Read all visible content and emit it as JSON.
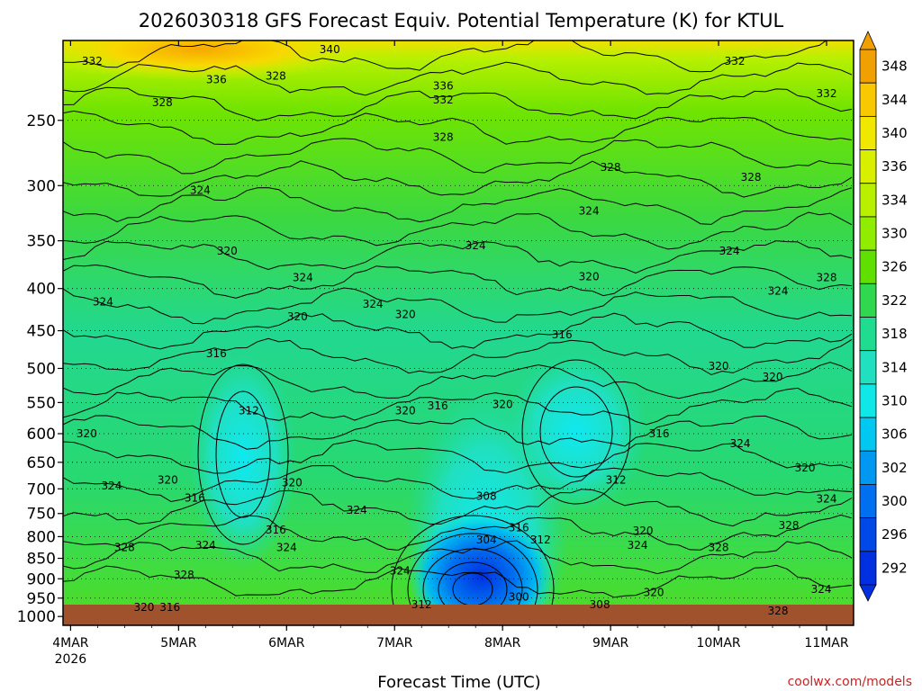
{
  "title": "2026030318 GFS Forecast Equiv. Potential Temperature (K) for KTUL",
  "xlabel": "Forecast Time (UTC)",
  "credit": "coolwx.com/models",
  "chart_data": {
    "type": "heatmap",
    "title": "2026030318 GFS Forecast Equiv. Potential Temperature (K) for KTUL",
    "xlabel": "Forecast Time (UTC)",
    "ylabel": "",
    "x_ticks": [
      {
        "label": "4MAR",
        "sub": "2026",
        "day": 0
      },
      {
        "label": "5MAR",
        "sub": "",
        "day": 1
      },
      {
        "label": "6MAR",
        "sub": "",
        "day": 2
      },
      {
        "label": "7MAR",
        "sub": "",
        "day": 3
      },
      {
        "label": "8MAR",
        "sub": "",
        "day": 4
      },
      {
        "label": "9MAR",
        "sub": "",
        "day": 5
      },
      {
        "label": "10MAR",
        "sub": "",
        "day": 6
      },
      {
        "label": "11MAR",
        "sub": "",
        "day": 7
      }
    ],
    "xlim_days": [
      -0.07,
      7.25
    ],
    "y_ticks": [
      250,
      300,
      350,
      400,
      450,
      500,
      550,
      600,
      650,
      700,
      750,
      800,
      850,
      900,
      950,
      1000
    ],
    "ylim_hpa": [
      200,
      1025
    ],
    "y_scale": "log",
    "colorbar": {
      "values": [
        348,
        344,
        340,
        336,
        334,
        330,
        326,
        322,
        318,
        314,
        310,
        306,
        302,
        300,
        296,
        292
      ],
      "colors": [
        "#f0a000",
        "#f8c800",
        "#f0e800",
        "#d8f000",
        "#b8f000",
        "#90ec00",
        "#60e000",
        "#30d850",
        "#20dc90",
        "#20e0c0",
        "#10e8e8",
        "#00c8f0",
        "#0098f0",
        "#0070f0",
        "#0048e8",
        "#0030e0"
      ]
    },
    "contour_labels": [
      {
        "text": "332",
        "day": 0.2,
        "hpa": 212
      },
      {
        "text": "340",
        "day": 2.4,
        "hpa": 205
      },
      {
        "text": "336",
        "day": 1.35,
        "hpa": 223
      },
      {
        "text": "328",
        "day": 1.9,
        "hpa": 221
      },
      {
        "text": "328",
        "day": 0.85,
        "hpa": 238
      },
      {
        "text": "336",
        "day": 3.45,
        "hpa": 227
      },
      {
        "text": "332",
        "day": 3.45,
        "hpa": 236
      },
      {
        "text": "328",
        "day": 3.45,
        "hpa": 262
      },
      {
        "text": "332",
        "day": 6.15,
        "hpa": 212
      },
      {
        "text": "332",
        "day": 7.0,
        "hpa": 232
      },
      {
        "text": "328",
        "day": 5.0,
        "hpa": 285
      },
      {
        "text": "328",
        "day": 6.3,
        "hpa": 293
      },
      {
        "text": "324",
        "day": 1.2,
        "hpa": 304
      },
      {
        "text": "324",
        "day": 4.8,
        "hpa": 322
      },
      {
        "text": "324",
        "day": 3.75,
        "hpa": 355
      },
      {
        "text": "324",
        "day": 6.1,
        "hpa": 360
      },
      {
        "text": "320",
        "day": 1.45,
        "hpa": 360
      },
      {
        "text": "324",
        "day": 2.15,
        "hpa": 388
      },
      {
        "text": "320",
        "day": 4.8,
        "hpa": 387
      },
      {
        "text": "328",
        "day": 7.0,
        "hpa": 388
      },
      {
        "text": "324",
        "day": 6.55,
        "hpa": 403
      },
      {
        "text": "324",
        "day": 0.3,
        "hpa": 415
      },
      {
        "text": "324",
        "day": 2.8,
        "hpa": 418
      },
      {
        "text": "320",
        "day": 2.1,
        "hpa": 433
      },
      {
        "text": "320",
        "day": 3.1,
        "hpa": 430
      },
      {
        "text": "316",
        "day": 4.55,
        "hpa": 455
      },
      {
        "text": "316",
        "day": 1.35,
        "hpa": 480
      },
      {
        "text": "320",
        "day": 6.0,
        "hpa": 497
      },
      {
        "text": "320",
        "day": 6.5,
        "hpa": 512
      },
      {
        "text": "312",
        "day": 1.65,
        "hpa": 563
      },
      {
        "text": "320",
        "day": 3.1,
        "hpa": 563
      },
      {
        "text": "316",
        "day": 3.4,
        "hpa": 555
      },
      {
        "text": "320",
        "day": 4.0,
        "hpa": 553
      },
      {
        "text": "316",
        "day": 5.45,
        "hpa": 600
      },
      {
        "text": "320",
        "day": 0.15,
        "hpa": 600
      },
      {
        "text": "324",
        "day": 6.2,
        "hpa": 617
      },
      {
        "text": "320",
        "day": 6.8,
        "hpa": 660
      },
      {
        "text": "312",
        "day": 5.05,
        "hpa": 683
      },
      {
        "text": "320",
        "day": 0.9,
        "hpa": 683
      },
      {
        "text": "324",
        "day": 0.38,
        "hpa": 694
      },
      {
        "text": "320",
        "day": 2.05,
        "hpa": 688
      },
      {
        "text": "308",
        "day": 3.85,
        "hpa": 715
      },
      {
        "text": "324",
        "day": 7.0,
        "hpa": 720
      },
      {
        "text": "316",
        "day": 1.15,
        "hpa": 718
      },
      {
        "text": "324",
        "day": 2.65,
        "hpa": 743
      },
      {
        "text": "328",
        "day": 6.65,
        "hpa": 775
      },
      {
        "text": "316",
        "day": 4.15,
        "hpa": 780
      },
      {
        "text": "316",
        "day": 1.9,
        "hpa": 785
      },
      {
        "text": "320",
        "day": 5.3,
        "hpa": 787
      },
      {
        "text": "304",
        "day": 3.85,
        "hpa": 807
      },
      {
        "text": "312",
        "day": 4.35,
        "hpa": 807
      },
      {
        "text": "324",
        "day": 1.25,
        "hpa": 820
      },
      {
        "text": "324",
        "day": 2.0,
        "hpa": 825
      },
      {
        "text": "324",
        "day": 5.25,
        "hpa": 820
      },
      {
        "text": "328",
        "day": 0.5,
        "hpa": 825
      },
      {
        "text": "328",
        "day": 6.0,
        "hpa": 825
      },
      {
        "text": "324",
        "day": 3.05,
        "hpa": 880
      },
      {
        "text": "328",
        "day": 1.05,
        "hpa": 890
      },
      {
        "text": "324",
        "day": 6.95,
        "hpa": 927
      },
      {
        "text": "320",
        "day": 5.4,
        "hpa": 935
      },
      {
        "text": "300",
        "day": 4.15,
        "hpa": 947
      },
      {
        "text": "312",
        "day": 3.25,
        "hpa": 967
      },
      {
        "text": "308",
        "day": 4.9,
        "hpa": 968
      },
      {
        "text": "320",
        "day": 0.68,
        "hpa": 975
      },
      {
        "text": "316",
        "day": 0.92,
        "hpa": 975
      },
      {
        "text": "328",
        "day": 6.55,
        "hpa": 985
      }
    ],
    "legend": "right colorbar",
    "grid": true
  }
}
